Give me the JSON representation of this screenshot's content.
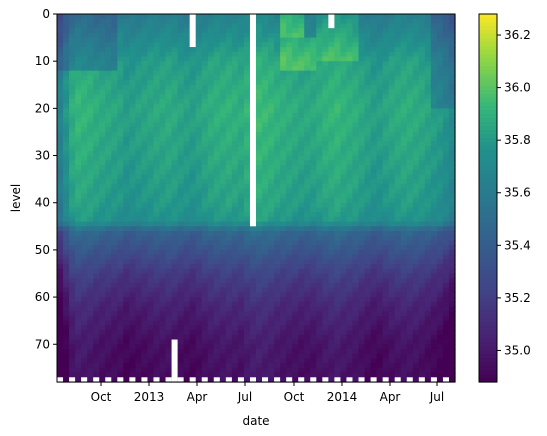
{
  "chart_data": {
    "type": "heatmap",
    "xlabel": "date",
    "ylabel": "level",
    "x_tick_labels": [
      "Oct",
      "2013",
      "Apr",
      "Jul",
      "Oct",
      "2014",
      "Apr",
      "Jul"
    ],
    "y_tick_labels": [
      "0",
      "10",
      "20",
      "30",
      "40",
      "50",
      "60",
      "70"
    ],
    "y_ticks": [
      0,
      10,
      20,
      30,
      40,
      50,
      60,
      70
    ],
    "y_range": [
      0,
      78
    ],
    "y_inverted": true,
    "n_columns": 66,
    "colormap": "viridis",
    "colorbar": {
      "range": [
        34.88,
        36.28
      ],
      "tick_values": [
        35.0,
        35.2,
        35.4,
        35.6,
        35.8,
        36.0,
        36.2
      ],
      "tick_labels": [
        "35.0",
        "35.2",
        "35.4",
        "35.6",
        "35.8",
        "36.0",
        "36.2"
      ]
    },
    "value_profile_levels": [
      0,
      10,
      20,
      30,
      40,
      44,
      46,
      55,
      62,
      70,
      78
    ],
    "value_profile": [
      35.62,
      35.82,
      35.87,
      35.84,
      35.8,
      35.75,
      35.45,
      35.18,
      35.05,
      34.96,
      34.93
    ],
    "column_offsets": [
      -0.2,
      -0.08,
      0.02,
      0.06,
      0.05,
      0.04,
      0.02,
      0.01,
      0.0,
      -0.01,
      -0.02,
      -0.05,
      -0.04,
      -0.03,
      -0.02,
      -0.01,
      0.0,
      0.0,
      0.01,
      0.0,
      -0.02,
      -0.03,
      -0.04,
      -0.02,
      0.0,
      0.02,
      0.03,
      0.03,
      0.04,
      0.03,
      0.02,
      0.05,
      0.07,
      0.08,
      0.07,
      0.06,
      0.04,
      0.03,
      0.02,
      0.01,
      0.0,
      0.0,
      0.0,
      0.02,
      0.04,
      0.05,
      0.06,
      0.04,
      0.03,
      0.02,
      0.0,
      -0.02,
      -0.04,
      -0.04,
      -0.02,
      0.0,
      0.01,
      0.02,
      0.02,
      0.01,
      0.0,
      -0.02,
      -0.04,
      -0.06,
      -0.1,
      -0.15
    ],
    "surface_anomalies": [
      {
        "col_start": 0,
        "col_end": 10,
        "level_start": 0,
        "level_end": 12,
        "delta": -0.18
      },
      {
        "col_start": 37,
        "col_end": 41,
        "level_start": 0,
        "level_end": 5,
        "delta": 0.25
      },
      {
        "col_start": 37,
        "col_end": 43,
        "level_start": 5,
        "level_end": 12,
        "delta": 0.15
      },
      {
        "col_start": 43,
        "col_end": 50,
        "level_start": 0,
        "level_end": 10,
        "delta": 0.12
      },
      {
        "col_start": 62,
        "col_end": 66,
        "level_start": 0,
        "level_end": 20,
        "delta": -0.15
      }
    ],
    "missing_blocks": [
      {
        "col_start": 22,
        "col_end": 23,
        "level_start": 0,
        "level_end": 7
      },
      {
        "col_start": 32,
        "col_end": 33,
        "level_start": 0,
        "level_end": 45
      },
      {
        "col_start": 45,
        "col_end": 46,
        "level_start": 0,
        "level_end": 3
      },
      {
        "col_start": 19,
        "col_end": 20,
        "level_start": 69,
        "level_end": 78
      }
    ],
    "missing_bottom_level": 77
  }
}
